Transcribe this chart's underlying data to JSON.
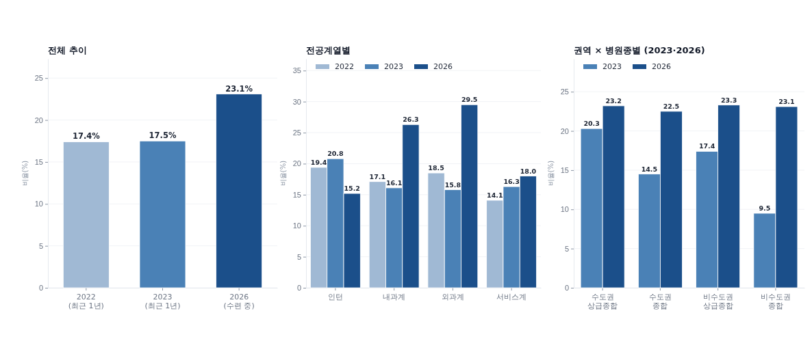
{
  "chart_data": [
    {
      "type": "bar",
      "title": "전체 추이",
      "ylabel": "비율(%)",
      "categories": [
        "2022\n(최근 1년)",
        "2023\n(최근 1년)",
        "2026\n(수련 중)"
      ],
      "series": [
        {
          "values": [
            17.4,
            17.5,
            23.1
          ],
          "colors": [
            "#a0b9d4",
            "#4a81b6",
            "#1b4f8a"
          ],
          "value_labels": [
            "17.4%",
            "17.5%",
            "23.1%"
          ]
        }
      ],
      "ylim": [
        0,
        27.3
      ],
      "yticks": [
        0,
        5,
        10,
        15,
        20,
        25
      ],
      "grid": "y",
      "legend": false
    },
    {
      "type": "bar",
      "title": "전공계열별",
      "ylabel": "비율(%)",
      "categories": [
        "인턴",
        "내과계",
        "외과계",
        "서비스계"
      ],
      "series": [
        {
          "name": "2022",
          "color": "#a0b9d4",
          "values": [
            19.4,
            17.1,
            18.5,
            14.1
          ],
          "value_labels": [
            "19.4",
            "17.1",
            "18.5",
            "14.1"
          ]
        },
        {
          "name": "2023",
          "color": "#4a81b6",
          "values": [
            20.8,
            16.1,
            15.8,
            16.3
          ],
          "value_labels": [
            "20.8",
            "16.1",
            "15.8",
            "16.3"
          ]
        },
        {
          "name": "2026",
          "color": "#1b4f8a",
          "values": [
            15.2,
            26.3,
            29.5,
            18.0
          ],
          "value_labels": [
            "15.2",
            "26.3",
            "29.5",
            "18.0"
          ]
        }
      ],
      "ylim": [
        0,
        36.9
      ],
      "yticks": [
        0,
        5,
        10,
        15,
        20,
        25,
        30,
        35
      ],
      "grid": "y",
      "legend": "top left"
    },
    {
      "type": "bar",
      "title": "권역 × 병원종별 (2023·2026)",
      "ylabel": "비율(%)",
      "categories": [
        "수도권\n상급종합",
        "수도권\n종합",
        "비수도권\n상급종합",
        "비수도권\n종합"
      ],
      "series": [
        {
          "name": "2023",
          "color": "#4a81b6",
          "values": [
            20.3,
            14.5,
            17.4,
            9.5
          ],
          "value_labels": [
            "20.3",
            "14.5",
            "17.4",
            "9.5"
          ]
        },
        {
          "name": "2026",
          "color": "#1b4f8a",
          "values": [
            23.2,
            22.5,
            23.3,
            23.1
          ],
          "value_labels": [
            "23.2",
            "22.5",
            "23.3",
            "23.1"
          ]
        }
      ],
      "ylim": [
        0,
        29.2
      ],
      "yticks": [
        0,
        5,
        10,
        15,
        20,
        25
      ],
      "grid": "y",
      "legend": "top left"
    }
  ]
}
